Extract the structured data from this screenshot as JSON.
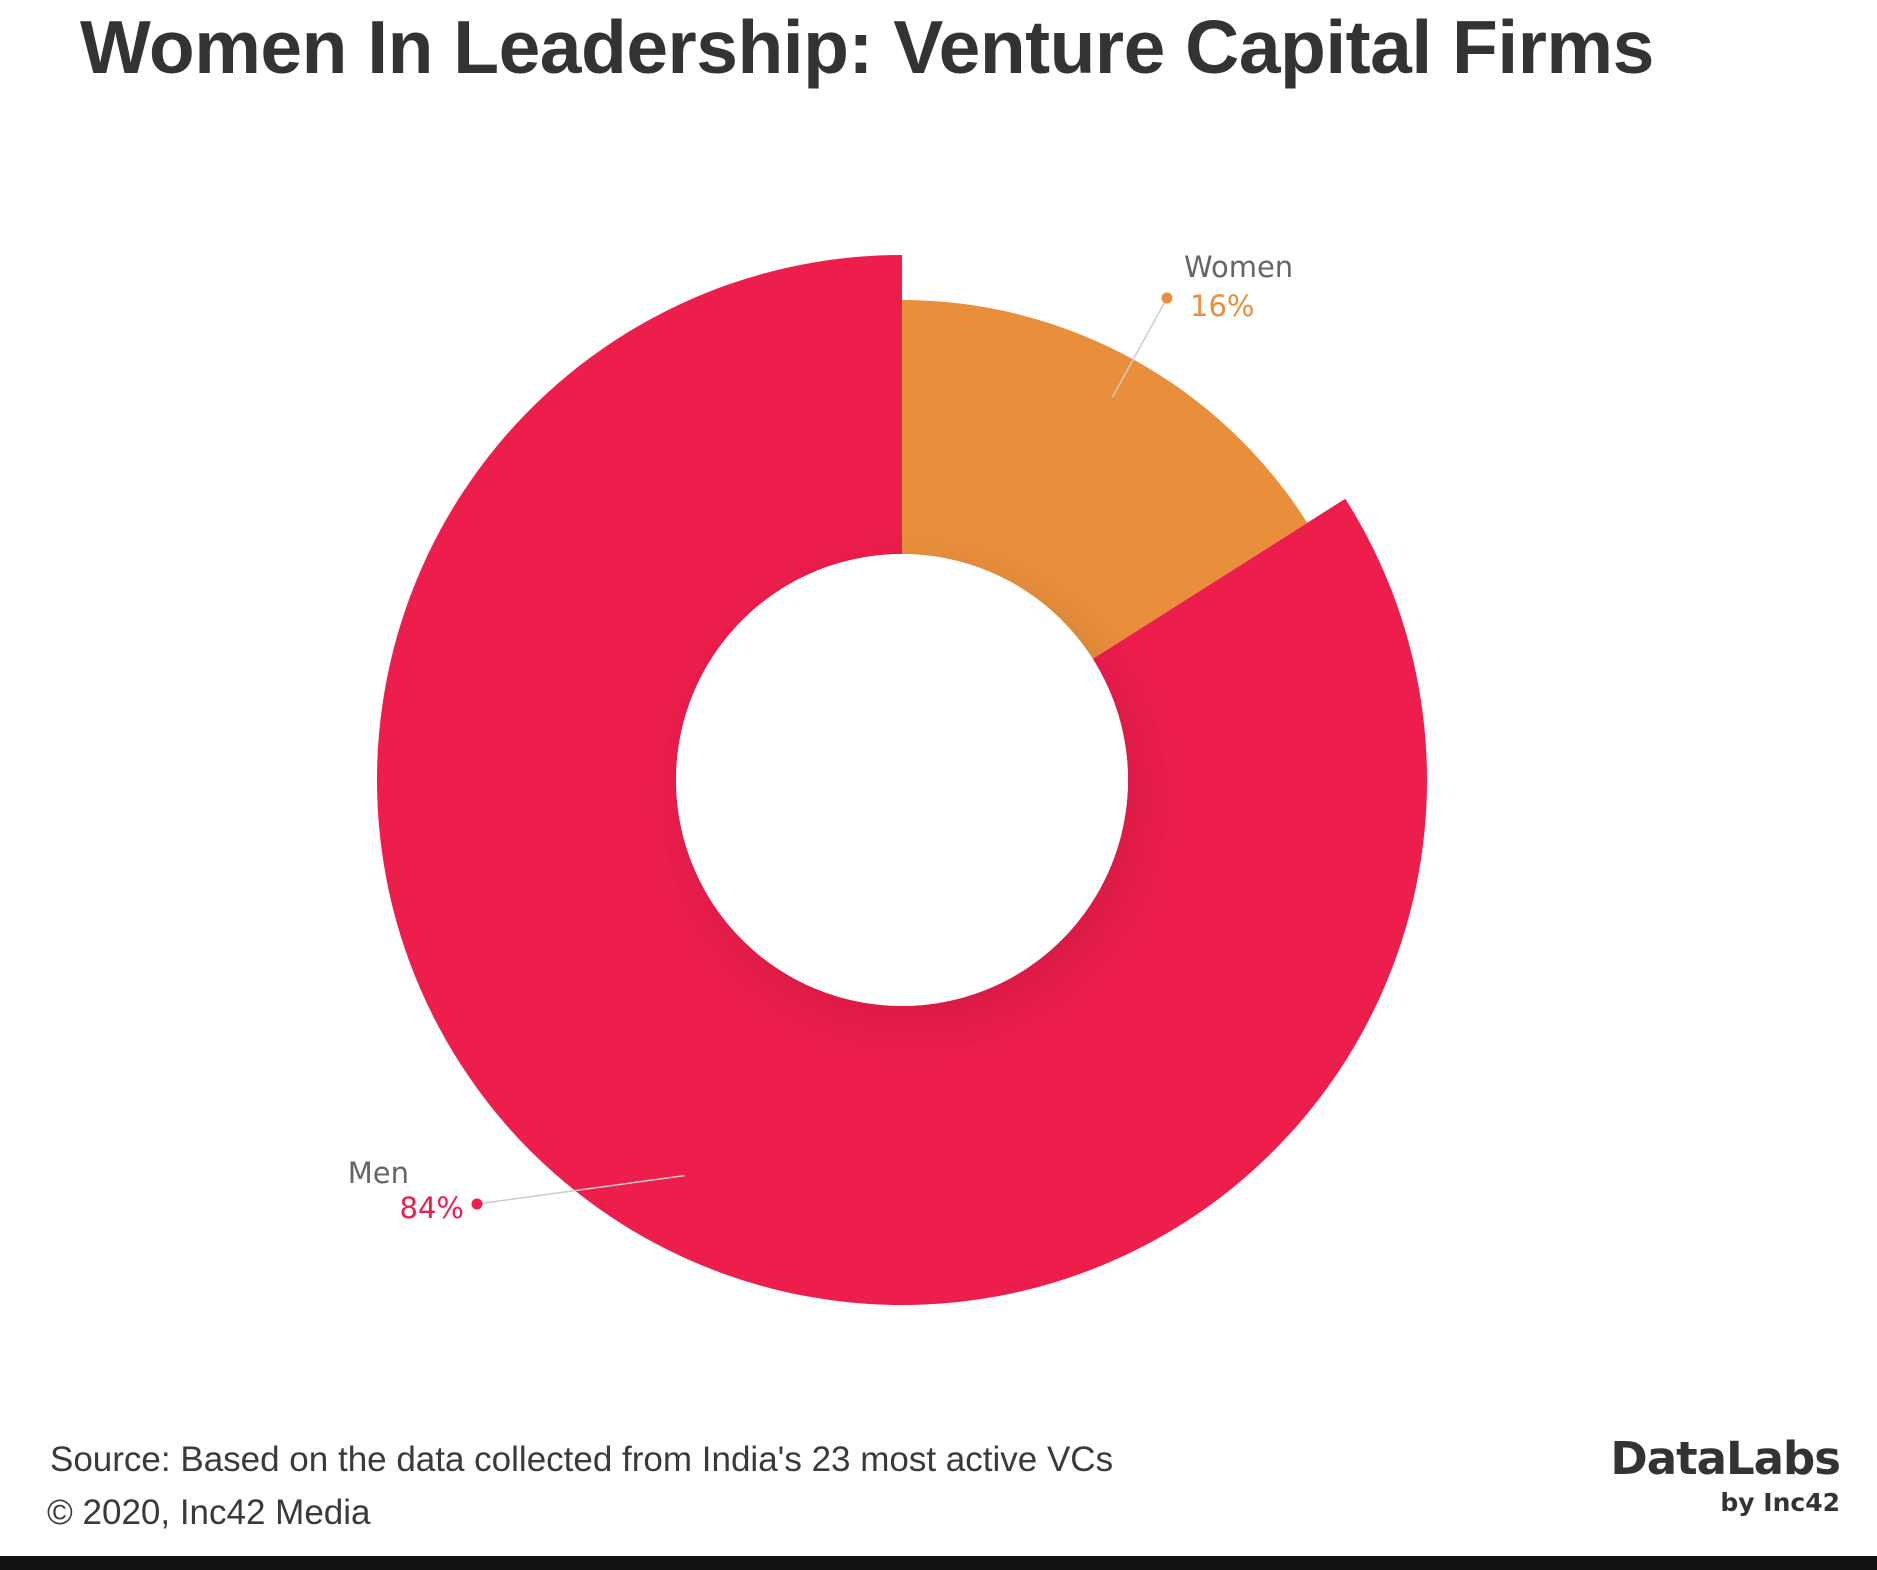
{
  "header": {
    "title": "Women In Leadership: Venture Capital Firms"
  },
  "chart_data": {
    "type": "pie",
    "variant": "donut",
    "slices": [
      {
        "label": "Women",
        "value": 16,
        "value_label": "16%",
        "color": "#E98F3B"
      },
      {
        "label": "Men",
        "value": 84,
        "value_label": "84%",
        "color": "#ED1D4C"
      }
    ]
  },
  "footer": {
    "source": "Source: Based on the data collected from India's 23 most active VCs",
    "copyright": "© 2020, Inc42 Media",
    "brand_name": "DataLabs",
    "brand_by": "by Inc42"
  },
  "colors": {
    "title": "#333333",
    "label_text": "#666666",
    "leader_line": "#cccccc"
  }
}
